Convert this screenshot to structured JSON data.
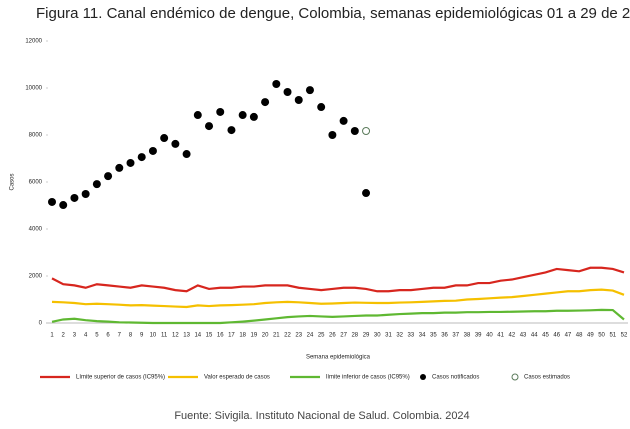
{
  "chart_data": {
    "type": "line",
    "title": "Figura 11.  Canal endémico de dengue, Colombia, semanas epidemiológicas 01 a 29 de 2024",
    "y_label": "Casos",
    "x_label": "Semana epidemiológica",
    "source": "Fuente: Sivigila. Instituto Nacional de Salud. Colombia. 2024",
    "ylim": [
      0,
      12000
    ],
    "yticks": [
      0,
      2000,
      4000,
      6000,
      8000,
      10000,
      12000
    ],
    "categories": [
      "1",
      "2",
      "3",
      "4",
      "5",
      "6",
      "7",
      "8",
      "9",
      "10",
      "11",
      "12",
      "13",
      "14",
      "15",
      "16",
      "17",
      "18",
      "19",
      "20",
      "21",
      "22",
      "23",
      "24",
      "25",
      "26",
      "27",
      "28",
      "29",
      "30",
      "31",
      "32",
      "33",
      "34",
      "35",
      "36",
      "37",
      "38",
      "39",
      "40",
      "41",
      "42",
      "43",
      "44",
      "45",
      "46",
      "47",
      "48",
      "49",
      "50",
      "51",
      "52"
    ],
    "series": [
      {
        "name": "Límite superior de casos (IC95%)",
        "color": "#d7261e",
        "style": "line",
        "values": [
          1900,
          1650,
          1600,
          1500,
          1650,
          1600,
          1550,
          1500,
          1600,
          1550,
          1500,
          1400,
          1350,
          1600,
          1450,
          1500,
          1500,
          1550,
          1550,
          1600,
          1600,
          1600,
          1500,
          1450,
          1400,
          1450,
          1500,
          1500,
          1450,
          1350,
          1350,
          1400,
          1400,
          1450,
          1500,
          1500,
          1600,
          1600,
          1700,
          1700,
          1800,
          1850,
          1950,
          2050,
          2150,
          2300,
          2250,
          2200,
          2350,
          2350,
          2300,
          2150
        ]
      },
      {
        "name": "Valor esperado de casos",
        "color": "#f5c000",
        "style": "line",
        "values": [
          900,
          880,
          850,
          800,
          820,
          800,
          780,
          750,
          760,
          740,
          720,
          700,
          680,
          750,
          720,
          750,
          760,
          780,
          800,
          850,
          880,
          900,
          880,
          850,
          820,
          830,
          850,
          870,
          860,
          850,
          850,
          870,
          880,
          900,
          920,
          940,
          950,
          1000,
          1020,
          1050,
          1080,
          1100,
          1150,
          1200,
          1250,
          1300,
          1350,
          1350,
          1400,
          1420,
          1380,
          1200
        ]
      },
      {
        "name": "límite inferior de casos (IC95%)",
        "color": "#5fb832",
        "style": "line",
        "values": [
          50,
          150,
          180,
          120,
          80,
          60,
          30,
          20,
          10,
          0,
          0,
          0,
          0,
          0,
          0,
          0,
          30,
          60,
          100,
          150,
          200,
          250,
          280,
          300,
          280,
          260,
          280,
          300,
          320,
          320,
          350,
          380,
          400,
          420,
          420,
          440,
          440,
          460,
          460,
          470,
          470,
          480,
          490,
          500,
          500,
          520,
          520,
          530,
          540,
          560,
          550,
          150
        ]
      },
      {
        "name": "Casos notificados",
        "color": "#000000",
        "style": "dots",
        "values": [
          5150,
          5020,
          5320,
          5490,
          5910,
          6250,
          6600,
          6810,
          7060,
          7320,
          7870,
          7620,
          7190,
          8850,
          8380,
          8980,
          8210,
          8850,
          8770,
          9400,
          10170,
          9830,
          9490,
          9910,
          9190,
          8000,
          8600,
          8170,
          5530,
          null,
          null,
          null,
          null,
          null,
          null,
          null,
          null,
          null,
          null,
          null,
          null,
          null,
          null,
          null,
          null,
          null,
          null,
          null,
          null,
          null,
          null,
          null
        ]
      },
      {
        "name": "Casos estimados",
        "color": "#5a7a5a",
        "style": "hollow",
        "values": [
          null,
          null,
          null,
          null,
          null,
          null,
          null,
          null,
          null,
          null,
          null,
          null,
          null,
          null,
          null,
          null,
          null,
          null,
          null,
          null,
          null,
          null,
          null,
          null,
          null,
          null,
          null,
          null,
          8170,
          null,
          null,
          null,
          null,
          null,
          null,
          null,
          null,
          null,
          null,
          null,
          null,
          null,
          null,
          null,
          null,
          null,
          null,
          null,
          null,
          null,
          null,
          null
        ]
      }
    ]
  }
}
